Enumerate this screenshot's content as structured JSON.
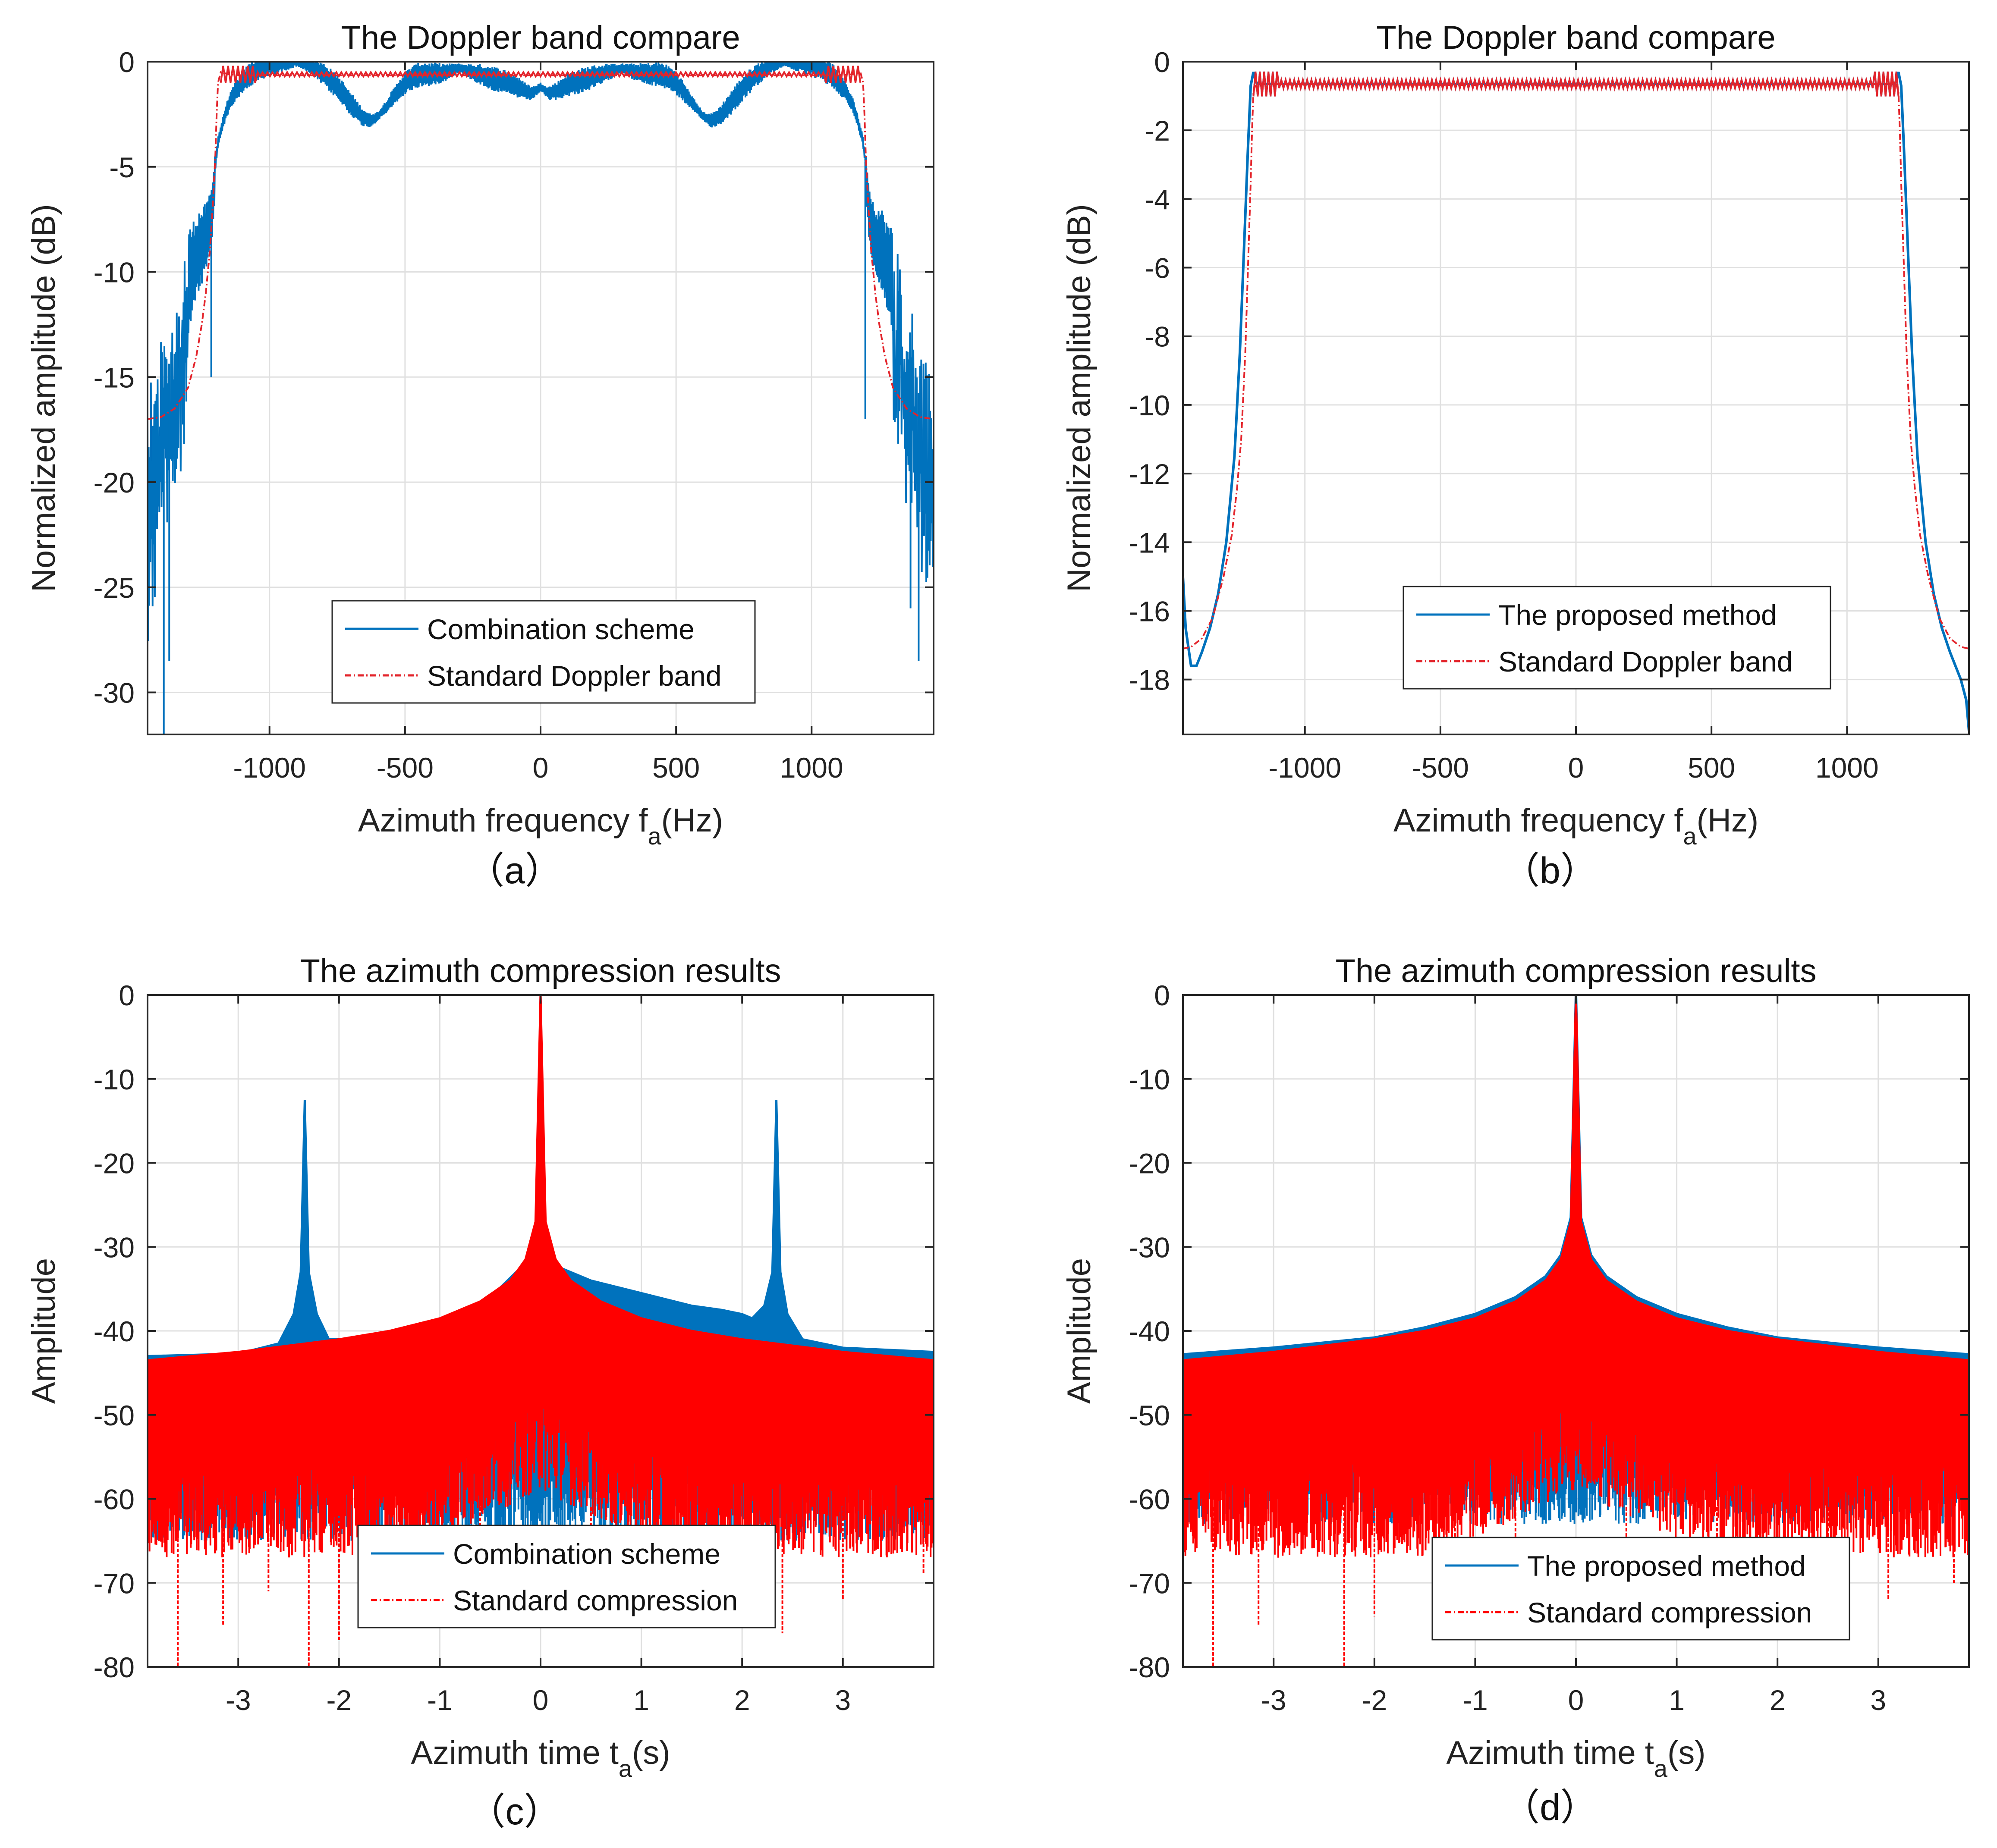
{
  "chart_data": [
    {
      "id": "a",
      "type": "line",
      "title": "The Doppler band compare",
      "xlabel": "Azimuth frequency f",
      "xlabel_sub": "a",
      "xlabel_unit": "(Hz)",
      "ylabel": "Normalized amplitude (dB)",
      "xlim": [
        -1450,
        1450
      ],
      "ylim": [
        -32,
        0
      ],
      "xticks": [
        -1000,
        -500,
        0,
        500,
        1000
      ],
      "yticks": [
        0,
        -5,
        -10,
        -15,
        -20,
        -25,
        -30
      ],
      "xtick_labels": [
        "-1000",
        "-500",
        "0",
        "500",
        "1000"
      ],
      "ytick_labels": [
        "0",
        "-5",
        "-10",
        "-15",
        "-20",
        "-25",
        "-30"
      ],
      "caption": "（a）",
      "legend": [
        "Combination scheme",
        "Standard Doppler band"
      ],
      "series": [
        {
          "name": "Combination scheme",
          "color": "#0072BD",
          "x": [
            -1450,
            -1420,
            -1380,
            -1340,
            -1300,
            -1260,
            -1230,
            -1210,
            -1200,
            -1190,
            -1170,
            -1150,
            -1120,
            -1080,
            -1040,
            -1000,
            -950,
            -900,
            -850,
            -800,
            -750,
            -700,
            -660,
            -630,
            -600,
            -560,
            -520,
            -480,
            -440,
            -400,
            -350,
            -300,
            -250,
            -200,
            -150,
            -100,
            -60,
            -30,
            0,
            30,
            60,
            100,
            150,
            200,
            250,
            300,
            350,
            400,
            440,
            480,
            520,
            560,
            600,
            630,
            660,
            700,
            750,
            800,
            850,
            900,
            950,
            1000,
            1040,
            1080,
            1120,
            1150,
            1170,
            1190,
            1200,
            1210,
            1230,
            1260,
            1300,
            1340,
            1380,
            1420,
            1450
          ],
          "y": [
            -19,
            -17,
            -15,
            -12.5,
            -10.5,
            -9,
            -8.3,
            -7,
            -5,
            -3.8,
            -2.8,
            -2,
            -1.3,
            -0.7,
            -0.35,
            -0.15,
            -0.05,
            0,
            -0.2,
            -0.6,
            -1.2,
            -2,
            -2.6,
            -2.8,
            -2.6,
            -2,
            -1.3,
            -0.8,
            -0.6,
            -0.6,
            -0.5,
            -0.3,
            -0.5,
            -0.7,
            -0.9,
            -1.1,
            -1.4,
            -1.5,
            -1.2,
            -1.5,
            -1.4,
            -1.1,
            -0.9,
            -0.7,
            -0.5,
            -0.3,
            -0.5,
            -0.6,
            -0.6,
            -0.8,
            -1.3,
            -2,
            -2.6,
            -2.8,
            -2.6,
            -2,
            -1.2,
            -0.6,
            -0.2,
            0,
            -0.05,
            -0.15,
            -0.35,
            -0.7,
            -1.3,
            -2,
            -2.8,
            -3.8,
            -5,
            -7,
            -8.3,
            -9,
            -10.5,
            -12.5,
            -15,
            -17,
            -19
          ],
          "envelope_halfwidth_dB": 1.2
        },
        {
          "name": "Standard Doppler band",
          "color": "#E3242B",
          "x": [
            -1450,
            -1400,
            -1350,
            -1300,
            -1270,
            -1250,
            -1235,
            -1220,
            -1210,
            -1200,
            -1195,
            -1190,
            -1180,
            -1150,
            -1100,
            0,
            1100,
            1150,
            1180,
            1190,
            1195,
            1200,
            1210,
            1220,
            1235,
            1250,
            1270,
            1300,
            1350,
            1400,
            1450
          ],
          "y": [
            -17,
            -16.9,
            -16.5,
            -15.5,
            -14,
            -12.5,
            -11,
            -9,
            -7,
            -4.5,
            -2.5,
            -1,
            -0.5,
            -0.6,
            -0.65,
            -0.65,
            -0.65,
            -0.6,
            -0.5,
            -1,
            -2.5,
            -4.5,
            -7,
            -9,
            -11,
            -12.5,
            -14,
            -15.5,
            -16.5,
            -16.9,
            -17
          ]
        }
      ]
    },
    {
      "id": "b",
      "type": "line",
      "title": "The Doppler band compare",
      "xlabel": "Azimuth frequency f",
      "xlabel_sub": "a",
      "xlabel_unit": "(Hz)",
      "ylabel": "Normalized amplitude (dB)",
      "xlim": [
        -1450,
        1450
      ],
      "ylim": [
        -19.6,
        0
      ],
      "xticks": [
        -1000,
        -500,
        0,
        500,
        1000
      ],
      "yticks": [
        0,
        -2,
        -4,
        -6,
        -8,
        -10,
        -12,
        -14,
        -16,
        -18
      ],
      "xtick_labels": [
        "-1000",
        "-500",
        "0",
        "500",
        "1000"
      ],
      "ytick_labels": [
        "0",
        "-2",
        "-4",
        "-6",
        "-8",
        "-10",
        "-12",
        "-14",
        "-16",
        "-18"
      ],
      "caption": "（b）",
      "legend": [
        "The proposed method",
        "Standard Doppler band"
      ],
      "series": [
        {
          "name": "The proposed method",
          "color": "#0072BD",
          "x": [
            -1450,
            -1440,
            -1420,
            -1400,
            -1380,
            -1350,
            -1320,
            -1290,
            -1260,
            -1240,
            -1225,
            -1210,
            -1200,
            -1190,
            -1180,
            -1170,
            -1100,
            0,
            1100,
            1170,
            1180,
            1190,
            1200,
            1210,
            1225,
            1240,
            1260,
            1290,
            1320,
            1350,
            1380,
            1400,
            1420,
            1440,
            1450
          ],
          "y": [
            -15,
            -16.5,
            -17.6,
            -17.6,
            -17.2,
            -16.5,
            -15.5,
            -14,
            -11.5,
            -8.5,
            -5.5,
            -2.5,
            -0.7,
            -0.3,
            -0.6,
            -0.65,
            -0.65,
            -0.65,
            -0.65,
            -0.65,
            -0.6,
            -0.3,
            -0.7,
            -2.5,
            -5.5,
            -8.5,
            -11.5,
            -14,
            -15.5,
            -16.5,
            -17.2,
            -17.6,
            -18,
            -18.6,
            -19.5
          ]
        },
        {
          "name": "Standard Doppler band",
          "color": "#E3242B",
          "x": [
            -1450,
            -1420,
            -1380,
            -1340,
            -1300,
            -1270,
            -1250,
            -1235,
            -1220,
            -1210,
            -1200,
            -1195,
            -1190,
            -1180,
            -1150,
            0,
            1150,
            1180,
            1190,
            1195,
            1200,
            1210,
            1220,
            1235,
            1250,
            1270,
            1300,
            1340,
            1380,
            1420,
            1450
          ],
          "y": [
            -17.1,
            -17.05,
            -16.8,
            -16.2,
            -15,
            -13.8,
            -12.4,
            -11,
            -8.5,
            -6,
            -3.5,
            -2,
            -0.9,
            -0.6,
            -0.65,
            -0.7,
            -0.65,
            -0.6,
            -0.9,
            -2,
            -3.5,
            -6,
            -8.5,
            -11,
            -12.4,
            -13.8,
            -15,
            -16.2,
            -16.8,
            -17.05,
            -17.1
          ]
        }
      ]
    },
    {
      "id": "c",
      "type": "line",
      "title": "The azimuth compression results",
      "xlabel": "Azimuth time t",
      "xlabel_sub": "a",
      "xlabel_unit": "(s)",
      "ylabel": "Amplitude",
      "xlim": [
        -3.9,
        3.9
      ],
      "ylim": [
        -80,
        0
      ],
      "xticks": [
        -3,
        -2,
        -1,
        0,
        1,
        2,
        3
      ],
      "yticks": [
        0,
        -10,
        -20,
        -30,
        -40,
        -50,
        -60,
        -70,
        -80
      ],
      "xtick_labels": [
        "-3",
        "-2",
        "-1",
        "0",
        "1",
        "2",
        "3"
      ],
      "ytick_labels": [
        "0",
        "-10",
        "-20",
        "-30",
        "-40",
        "-50",
        "-60",
        "-70",
        "-80"
      ],
      "caption": "（c）",
      "legend": [
        "Combination scheme",
        "Standard compression"
      ],
      "series": [
        {
          "name": "Combination scheme",
          "color": "#0072BD",
          "x": [
            -3.9,
            -3,
            -2.6,
            -2.45,
            -2.38,
            -2.34,
            -2.3,
            -2.22,
            -2.1,
            -1.6,
            -1,
            -0.5,
            -0.2,
            -0.05,
            0,
            0.05,
            0.2,
            0.5,
            1,
            1.5,
            1.8,
            2,
            2.1,
            2.22,
            2.3,
            2.34,
            2.38,
            2.45,
            2.6,
            3,
            3.9
          ],
          "y": [
            -43,
            -42.7,
            -41.5,
            -38,
            -33,
            -12.5,
            -33,
            -38,
            -41,
            -41,
            -39,
            -36,
            -32.5,
            -31,
            0,
            -31,
            -32.5,
            -34,
            -35.5,
            -37,
            -37.5,
            -38,
            -38.5,
            -37,
            -33,
            -12.5,
            -33,
            -38,
            -41,
            -42,
            -42.5
          ]
        },
        {
          "name": "Standard compression",
          "color": "#FF0000",
          "x": [
            -3.9,
            -3,
            -2,
            -1.5,
            -1,
            -0.6,
            -0.3,
            -0.15,
            -0.05,
            0,
            0.05,
            0.15,
            0.3,
            0.6,
            1,
            1.5,
            2,
            3,
            3.9
          ],
          "y": [
            -43.5,
            -42.5,
            -41,
            -40,
            -38.5,
            -36.5,
            -34,
            -31.5,
            -27,
            0,
            -27,
            -31.5,
            -34,
            -36.5,
            -38.5,
            -40,
            -41,
            -42.5,
            -43.5
          ],
          "noise_floor": -61,
          "dips": [
            [
              -3.6,
              -80
            ],
            [
              -2.3,
              -80.5
            ],
            [
              -2.0,
              -77
            ],
            [
              -3.15,
              -75
            ],
            [
              -0.6,
              -73
            ],
            [
              0.5,
              -72
            ],
            [
              1.45,
              -71
            ],
            [
              2.4,
              -76
            ],
            [
              3.0,
              -72
            ],
            [
              3.8,
              -69
            ],
            [
              -1.2,
              -70
            ],
            [
              -2.7,
              -71
            ]
          ]
        }
      ]
    },
    {
      "id": "d",
      "type": "line",
      "title": "The azimuth compression results",
      "xlabel": "Azimuth time t",
      "xlabel_sub": "a",
      "xlabel_unit": "(s)",
      "ylabel": "Amplitude",
      "xlim": [
        -3.9,
        3.9
      ],
      "ylim": [
        -80,
        0
      ],
      "xticks": [
        -3,
        -2,
        -1,
        0,
        1,
        2,
        3
      ],
      "yticks": [
        0,
        -10,
        -20,
        -30,
        -40,
        -50,
        -60,
        -70,
        -80
      ],
      "xtick_labels": [
        "-3",
        "-2",
        "-1",
        "0",
        "1",
        "2",
        "3"
      ],
      "ytick_labels": [
        "0",
        "-10",
        "-20",
        "-30",
        "-40",
        "-50",
        "-60",
        "-70",
        "-80"
      ],
      "caption": "（d）",
      "legend": [
        "The proposed method",
        "Standard compression"
      ],
      "series": [
        {
          "name": "The proposed method",
          "color": "#0072BD",
          "x": [
            -3.9,
            -3,
            -2,
            -1.5,
            -1,
            -0.6,
            -0.3,
            -0.15,
            -0.05,
            0,
            0.05,
            0.15,
            0.3,
            0.6,
            1,
            1.5,
            2,
            3,
            3.9
          ],
          "y": [
            -42.8,
            -42,
            -40.8,
            -39.6,
            -38,
            -36,
            -33.5,
            -31,
            -26.5,
            0,
            -26.5,
            -31,
            -33.5,
            -36,
            -38,
            -39.6,
            -40.8,
            -42,
            -42.8
          ]
        },
        {
          "name": "Standard compression",
          "color": "#FF0000",
          "x": [
            -3.9,
            -3,
            -2,
            -1.5,
            -1,
            -0.6,
            -0.3,
            -0.15,
            -0.05,
            0,
            0.05,
            0.15,
            0.3,
            0.6,
            1,
            1.5,
            2,
            3,
            3.9
          ],
          "y": [
            -43.5,
            -42.5,
            -41,
            -40,
            -38.5,
            -36.5,
            -34,
            -31.5,
            -27,
            0,
            -27,
            -31.5,
            -34,
            -36.5,
            -38.5,
            -40,
            -41,
            -42.5,
            -43.5
          ],
          "noise_floor": -61,
          "dips": [
            [
              -3.6,
              -80
            ],
            [
              -2.3,
              -80.5
            ],
            [
              -3.15,
              -75
            ],
            [
              -2.0,
              -74
            ],
            [
              -0.6,
              -72
            ],
            [
              0.5,
              -72
            ],
            [
              1.4,
              -71
            ],
            [
              2.5,
              -74
            ],
            [
              3.1,
              -72
            ],
            [
              3.75,
              -70
            ],
            [
              -1.2,
              -70
            ]
          ]
        }
      ]
    }
  ]
}
